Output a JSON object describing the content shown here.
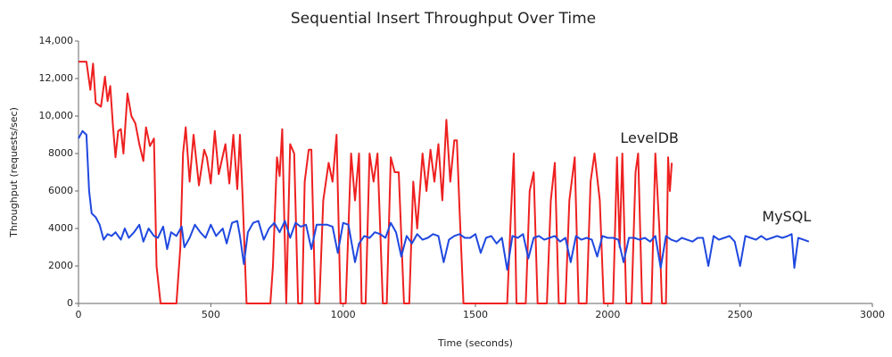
{
  "chart_data": {
    "type": "line",
    "title": "Sequential Insert Throughput Over Time",
    "x_label": "Time (seconds)",
    "y_label": "Throughput (requests/sec)",
    "xlim": [
      0,
      3000
    ],
    "xticks": [
      0,
      500,
      1000,
      1500,
      2000,
      2500,
      3000
    ],
    "ylim": [
      0,
      14000
    ],
    "yticks": [
      0,
      {
        "value": 2000,
        "label": "2000"
      },
      {
        "value": 4000,
        "label": "4000"
      },
      {
        "value": 6000,
        "label": "6000"
      },
      {
        "value": 8000,
        "label": "8000"
      },
      {
        "value": 10000,
        "label": "10,000"
      },
      {
        "value": 12000,
        "label": "12,000"
      },
      {
        "value": 14000,
        "label": "14,000"
      }
    ],
    "series": [
      {
        "name": "LevelDB",
        "color": "#ee2020",
        "x": [
          0,
          30,
          45,
          55,
          65,
          85,
          100,
          110,
          120,
          130,
          140,
          150,
          160,
          170,
          185,
          200,
          215,
          230,
          245,
          255,
          270,
          285,
          295,
          310,
          370,
          385,
          395,
          405,
          420,
          435,
          455,
          475,
          485,
          500,
          515,
          530,
          555,
          570,
          585,
          600,
          610,
          620,
          635,
          725,
          735,
          750,
          760,
          770,
          785,
          800,
          815,
          830,
          845,
          855,
          870,
          880,
          895,
          910,
          925,
          945,
          960,
          975,
          990,
          1010,
          1030,
          1045,
          1060,
          1070,
          1085,
          1100,
          1115,
          1130,
          1150,
          1165,
          1180,
          1195,
          1210,
          1230,
          1250,
          1265,
          1280,
          1300,
          1315,
          1330,
          1345,
          1360,
          1375,
          1390,
          1405,
          1420,
          1430,
          1440,
          1455,
          1620,
          1635,
          1645,
          1655,
          1690,
          1705,
          1720,
          1735,
          1770,
          1785,
          1800,
          1815,
          1840,
          1855,
          1875,
          1890,
          1920,
          1935,
          1950,
          1970,
          1985,
          2020,
          2035,
          2045,
          2055,
          2070,
          2090,
          2105,
          2115,
          2130,
          2165,
          2180,
          2195,
          2205,
          2220,
          2228,
          2235,
          2242
        ],
        "values": [
          12900,
          12900,
          11400,
          12800,
          10700,
          10500,
          12100,
          10800,
          11600,
          9500,
          7800,
          9200,
          9300,
          8000,
          11200,
          10000,
          9600,
          8500,
          7600,
          9400,
          8400,
          8800,
          2000,
          0,
          0,
          3000,
          8000,
          9400,
          6500,
          9000,
          6300,
          8200,
          7800,
          6400,
          9200,
          6900,
          8500,
          6400,
          9000,
          6100,
          9000,
          5800,
          0,
          0,
          2000,
          7800,
          6800,
          9300,
          0,
          8500,
          8000,
          0,
          0,
          6500,
          8200,
          8200,
          0,
          0,
          5500,
          7500,
          6500,
          9000,
          0,
          0,
          8000,
          5500,
          8000,
          0,
          0,
          8000,
          6500,
          8000,
          0,
          0,
          7800,
          7000,
          7000,
          0,
          0,
          6500,
          4000,
          8000,
          6000,
          8200,
          6500,
          8500,
          5500,
          9800,
          6500,
          8700,
          8700,
          5000,
          0,
          0,
          5000,
          8000,
          0,
          0,
          6000,
          7000,
          0,
          0,
          5500,
          7500,
          0,
          0,
          5500,
          7800,
          0,
          0,
          6500,
          8000,
          5500,
          0,
          0,
          7800,
          3000,
          8000,
          0,
          0,
          7000,
          8000,
          0,
          0,
          8000,
          4000,
          0,
          0,
          7800,
          6000,
          7500
        ]
      },
      {
        "name": "MySQL",
        "color": "#1f48e0",
        "x": [
          0,
          15,
          30,
          40,
          50,
          65,
          80,
          95,
          110,
          125,
          140,
          160,
          175,
          190,
          210,
          230,
          245,
          265,
          285,
          300,
          320,
          335,
          350,
          370,
          390,
          400,
          420,
          440,
          460,
          480,
          500,
          520,
          545,
          560,
          580,
          600,
          610,
          625,
          640,
          660,
          680,
          700,
          720,
          740,
          760,
          780,
          800,
          820,
          840,
          860,
          880,
          900,
          920,
          940,
          960,
          980,
          1000,
          1020,
          1045,
          1060,
          1080,
          1100,
          1120,
          1140,
          1160,
          1180,
          1200,
          1220,
          1240,
          1260,
          1280,
          1300,
          1320,
          1340,
          1360,
          1380,
          1400,
          1420,
          1440,
          1460,
          1480,
          1500,
          1520,
          1540,
          1560,
          1580,
          1600,
          1620,
          1640,
          1660,
          1680,
          1700,
          1720,
          1740,
          1760,
          1780,
          1800,
          1820,
          1840,
          1860,
          1880,
          1900,
          1920,
          1940,
          1960,
          1980,
          2000,
          2020,
          2040,
          2060,
          2080,
          2100,
          2120,
          2140,
          2160,
          2180,
          2200,
          2220,
          2240,
          2260,
          2280,
          2300,
          2320,
          2340,
          2360,
          2380,
          2400,
          2420,
          2440,
          2460,
          2480,
          2500,
          2520,
          2540,
          2560,
          2580,
          2600,
          2620,
          2640,
          2660,
          2680,
          2695,
          2705,
          2720,
          2740,
          2760
        ],
        "values": [
          8800,
          9200,
          9000,
          6000,
          4800,
          4600,
          4200,
          3400,
          3700,
          3600,
          3800,
          3400,
          4000,
          3500,
          3800,
          4200,
          3300,
          4000,
          3600,
          3500,
          4100,
          2900,
          3800,
          3600,
          4100,
          3000,
          3500,
          4200,
          3800,
          3500,
          4200,
          3600,
          4000,
          3200,
          4300,
          4400,
          3600,
          2100,
          3800,
          4300,
          4400,
          3400,
          4000,
          4300,
          3800,
          4400,
          3500,
          4300,
          4100,
          4200,
          2900,
          4200,
          4200,
          4200,
          4100,
          2700,
          4300,
          4200,
          2200,
          3200,
          3600,
          3500,
          3800,
          3700,
          3500,
          4300,
          3800,
          2500,
          3600,
          3200,
          3700,
          3400,
          3500,
          3700,
          3600,
          2200,
          3400,
          3600,
          3700,
          3500,
          3500,
          3700,
          2700,
          3500,
          3600,
          3200,
          3500,
          1800,
          3600,
          3500,
          3700,
          2400,
          3500,
          3600,
          3400,
          3500,
          3600,
          3300,
          3500,
          2200,
          3600,
          3400,
          3500,
          3400,
          2500,
          3600,
          3500,
          3500,
          3400,
          2200,
          3500,
          3500,
          3400,
          3500,
          3300,
          3600,
          1900,
          3600,
          3400,
          3300,
          3500,
          3400,
          3300,
          3500,
          3500,
          2000,
          3600,
          3400,
          3500,
          3600,
          3300,
          2000,
          3600,
          3500,
          3400,
          3600,
          3400,
          3500,
          3600,
          3500,
          3600,
          3700,
          1900,
          3500,
          3400,
          3300
        ]
      }
    ]
  }
}
